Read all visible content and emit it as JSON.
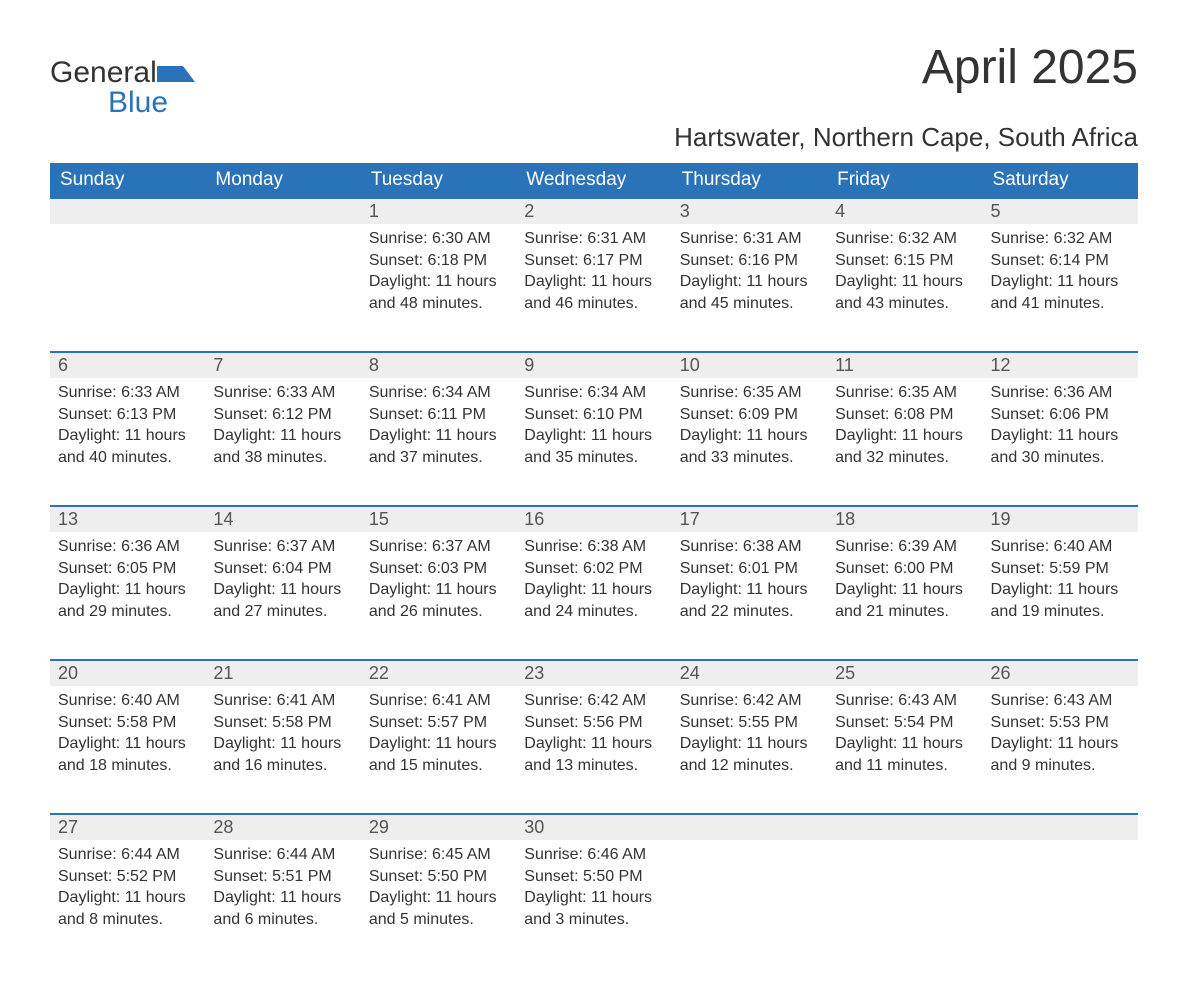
{
  "brand": {
    "word1": "General",
    "word2": "Blue"
  },
  "title": "April 2025",
  "location": "Hartswater, Northern Cape, South Africa",
  "theme": {
    "header_bg": "#2a73b8",
    "header_text": "#ffffff",
    "daynum_bg": "#eeeeee",
    "daynum_border": "#2a73b8",
    "body_text": "#333333",
    "page_bg": "#ffffff",
    "title_fontsize": 48,
    "location_fontsize": 26,
    "dayhead_fontsize": 19,
    "daynum_fontsize": 18,
    "cell_fontsize": 16
  },
  "weekdays": [
    "Sunday",
    "Monday",
    "Tuesday",
    "Wednesday",
    "Thursday",
    "Friday",
    "Saturday"
  ],
  "weeks": [
    [
      null,
      null,
      {
        "day": "1",
        "sunrise": "Sunrise: 6:30 AM",
        "sunset": "Sunset: 6:18 PM",
        "daylight1": "Daylight: 11 hours",
        "daylight2": "and 48 minutes."
      },
      {
        "day": "2",
        "sunrise": "Sunrise: 6:31 AM",
        "sunset": "Sunset: 6:17 PM",
        "daylight1": "Daylight: 11 hours",
        "daylight2": "and 46 minutes."
      },
      {
        "day": "3",
        "sunrise": "Sunrise: 6:31 AM",
        "sunset": "Sunset: 6:16 PM",
        "daylight1": "Daylight: 11 hours",
        "daylight2": "and 45 minutes."
      },
      {
        "day": "4",
        "sunrise": "Sunrise: 6:32 AM",
        "sunset": "Sunset: 6:15 PM",
        "daylight1": "Daylight: 11 hours",
        "daylight2": "and 43 minutes."
      },
      {
        "day": "5",
        "sunrise": "Sunrise: 6:32 AM",
        "sunset": "Sunset: 6:14 PM",
        "daylight1": "Daylight: 11 hours",
        "daylight2": "and 41 minutes."
      }
    ],
    [
      {
        "day": "6",
        "sunrise": "Sunrise: 6:33 AM",
        "sunset": "Sunset: 6:13 PM",
        "daylight1": "Daylight: 11 hours",
        "daylight2": "and 40 minutes."
      },
      {
        "day": "7",
        "sunrise": "Sunrise: 6:33 AM",
        "sunset": "Sunset: 6:12 PM",
        "daylight1": "Daylight: 11 hours",
        "daylight2": "and 38 minutes."
      },
      {
        "day": "8",
        "sunrise": "Sunrise: 6:34 AM",
        "sunset": "Sunset: 6:11 PM",
        "daylight1": "Daylight: 11 hours",
        "daylight2": "and 37 minutes."
      },
      {
        "day": "9",
        "sunrise": "Sunrise: 6:34 AM",
        "sunset": "Sunset: 6:10 PM",
        "daylight1": "Daylight: 11 hours",
        "daylight2": "and 35 minutes."
      },
      {
        "day": "10",
        "sunrise": "Sunrise: 6:35 AM",
        "sunset": "Sunset: 6:09 PM",
        "daylight1": "Daylight: 11 hours",
        "daylight2": "and 33 minutes."
      },
      {
        "day": "11",
        "sunrise": "Sunrise: 6:35 AM",
        "sunset": "Sunset: 6:08 PM",
        "daylight1": "Daylight: 11 hours",
        "daylight2": "and 32 minutes."
      },
      {
        "day": "12",
        "sunrise": "Sunrise: 6:36 AM",
        "sunset": "Sunset: 6:06 PM",
        "daylight1": "Daylight: 11 hours",
        "daylight2": "and 30 minutes."
      }
    ],
    [
      {
        "day": "13",
        "sunrise": "Sunrise: 6:36 AM",
        "sunset": "Sunset: 6:05 PM",
        "daylight1": "Daylight: 11 hours",
        "daylight2": "and 29 minutes."
      },
      {
        "day": "14",
        "sunrise": "Sunrise: 6:37 AM",
        "sunset": "Sunset: 6:04 PM",
        "daylight1": "Daylight: 11 hours",
        "daylight2": "and 27 minutes."
      },
      {
        "day": "15",
        "sunrise": "Sunrise: 6:37 AM",
        "sunset": "Sunset: 6:03 PM",
        "daylight1": "Daylight: 11 hours",
        "daylight2": "and 26 minutes."
      },
      {
        "day": "16",
        "sunrise": "Sunrise: 6:38 AM",
        "sunset": "Sunset: 6:02 PM",
        "daylight1": "Daylight: 11 hours",
        "daylight2": "and 24 minutes."
      },
      {
        "day": "17",
        "sunrise": "Sunrise: 6:38 AM",
        "sunset": "Sunset: 6:01 PM",
        "daylight1": "Daylight: 11 hours",
        "daylight2": "and 22 minutes."
      },
      {
        "day": "18",
        "sunrise": "Sunrise: 6:39 AM",
        "sunset": "Sunset: 6:00 PM",
        "daylight1": "Daylight: 11 hours",
        "daylight2": "and 21 minutes."
      },
      {
        "day": "19",
        "sunrise": "Sunrise: 6:40 AM",
        "sunset": "Sunset: 5:59 PM",
        "daylight1": "Daylight: 11 hours",
        "daylight2": "and 19 minutes."
      }
    ],
    [
      {
        "day": "20",
        "sunrise": "Sunrise: 6:40 AM",
        "sunset": "Sunset: 5:58 PM",
        "daylight1": "Daylight: 11 hours",
        "daylight2": "and 18 minutes."
      },
      {
        "day": "21",
        "sunrise": "Sunrise: 6:41 AM",
        "sunset": "Sunset: 5:58 PM",
        "daylight1": "Daylight: 11 hours",
        "daylight2": "and 16 minutes."
      },
      {
        "day": "22",
        "sunrise": "Sunrise: 6:41 AM",
        "sunset": "Sunset: 5:57 PM",
        "daylight1": "Daylight: 11 hours",
        "daylight2": "and 15 minutes."
      },
      {
        "day": "23",
        "sunrise": "Sunrise: 6:42 AM",
        "sunset": "Sunset: 5:56 PM",
        "daylight1": "Daylight: 11 hours",
        "daylight2": "and 13 minutes."
      },
      {
        "day": "24",
        "sunrise": "Sunrise: 6:42 AM",
        "sunset": "Sunset: 5:55 PM",
        "daylight1": "Daylight: 11 hours",
        "daylight2": "and 12 minutes."
      },
      {
        "day": "25",
        "sunrise": "Sunrise: 6:43 AM",
        "sunset": "Sunset: 5:54 PM",
        "daylight1": "Daylight: 11 hours",
        "daylight2": "and 11 minutes."
      },
      {
        "day": "26",
        "sunrise": "Sunrise: 6:43 AM",
        "sunset": "Sunset: 5:53 PM",
        "daylight1": "Daylight: 11 hours",
        "daylight2": "and 9 minutes."
      }
    ],
    [
      {
        "day": "27",
        "sunrise": "Sunrise: 6:44 AM",
        "sunset": "Sunset: 5:52 PM",
        "daylight1": "Daylight: 11 hours",
        "daylight2": "and 8 minutes."
      },
      {
        "day": "28",
        "sunrise": "Sunrise: 6:44 AM",
        "sunset": "Sunset: 5:51 PM",
        "daylight1": "Daylight: 11 hours",
        "daylight2": "and 6 minutes."
      },
      {
        "day": "29",
        "sunrise": "Sunrise: 6:45 AM",
        "sunset": "Sunset: 5:50 PM",
        "daylight1": "Daylight: 11 hours",
        "daylight2": "and 5 minutes."
      },
      {
        "day": "30",
        "sunrise": "Sunrise: 6:46 AM",
        "sunset": "Sunset: 5:50 PM",
        "daylight1": "Daylight: 11 hours",
        "daylight2": "and 3 minutes."
      },
      null,
      null,
      null
    ]
  ]
}
